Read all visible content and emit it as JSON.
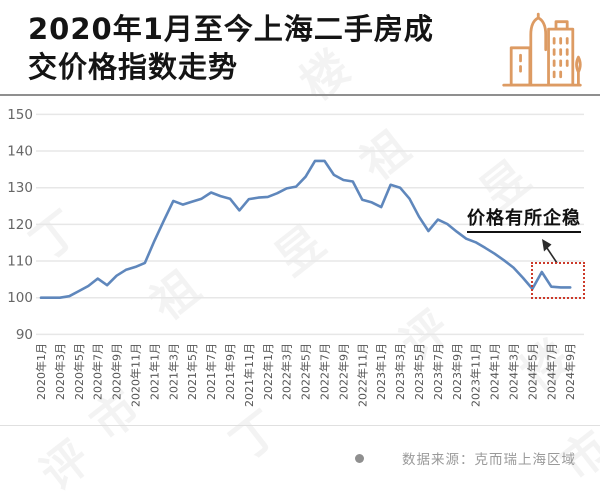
{
  "header": {
    "title_line1": "2020年1月至今上海二手房成",
    "title_line2": "交价格指数走势"
  },
  "annotation": {
    "label": "价格有所企稳"
  },
  "footer": {
    "source_label": "数据来源：克而瑞上海区域"
  },
  "watermark": {
    "text": "丁祖昱评楼市"
  },
  "colors": {
    "line": "#5f87bc",
    "grid": "#e7e7e7",
    "axis_text": "#666666",
    "x_axis_text": "#555555",
    "title": "#141414",
    "icon": "#dd9b63",
    "highlight_box": "#cc3a2a",
    "source_text": "#9a9a9a",
    "arrow": "#2b2b2b"
  },
  "chart_data": {
    "type": "line",
    "title": "2020年1月至今上海二手房成交价格指数走势",
    "x_start": "2020年1月",
    "x_end": "2024年9月",
    "x_interval_months": 1,
    "x_tick_labels": [
      "2020年1月",
      "2020年3月",
      "2020年5月",
      "2020年7月",
      "2020年9月",
      "2020年11月",
      "2021年1月",
      "2021年3月",
      "2021年5月",
      "2021年7月",
      "2021年9月",
      "2021年11月",
      "2022年1月",
      "2022年3月",
      "2022年5月",
      "2022年7月",
      "2022年9月",
      "2022年11月",
      "2023年1月",
      "2023年3月",
      "2023年5月",
      "2023年7月",
      "2023年9月",
      "2023年11月",
      "2024年1月",
      "2024年3月",
      "2024年5月",
      "2024年7月",
      "2024年9月"
    ],
    "monthly_values": [
      100,
      100,
      100,
      100.4,
      101.8,
      103.2,
      105.2,
      103.4,
      106,
      107.6,
      108.4,
      109.5,
      115.5,
      121,
      126.4,
      125.4,
      126.2,
      127,
      128.7,
      127.7,
      127,
      123.8,
      126.9,
      127.3,
      127.5,
      128.5,
      129.8,
      130.3,
      133,
      137.3,
      137.3,
      133.5,
      132.1,
      131.7,
      126.7,
      126,
      124.7,
      130.8,
      130,
      127,
      122.1,
      118.2,
      121.3,
      120.1,
      118,
      116.1,
      115.1,
      113.6,
      112,
      110.2,
      108.2,
      105.4,
      102.4,
      107,
      103,
      102.8,
      102.8
    ],
    "yticks": [
      90,
      100,
      110,
      120,
      130,
      140,
      150
    ],
    "ylim": [
      90,
      150
    ],
    "grid": true,
    "legend": "none",
    "annotation_text": "价格有所企稳",
    "highlighted_range": "2024年5月-2024年9月"
  }
}
